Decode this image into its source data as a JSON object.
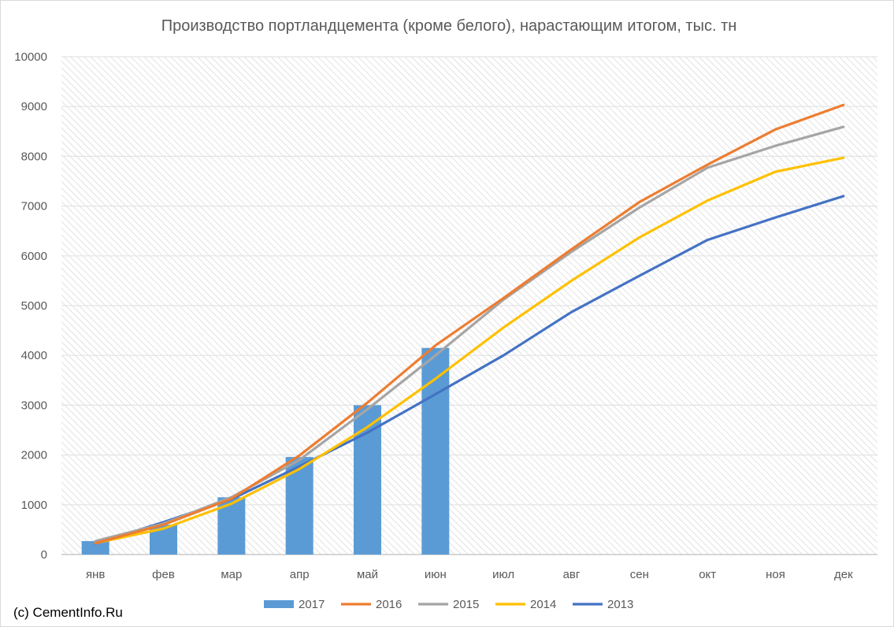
{
  "chart_data": {
    "type": "bar",
    "title": "Производство портландцемента (кроме белого), нарастающим итогом, тыс. тн",
    "xlabel": "",
    "ylabel": "",
    "categories": [
      "янв",
      "фев",
      "мар",
      "апр",
      "май",
      "июн",
      "июл",
      "авг",
      "сен",
      "окт",
      "ноя",
      "дек"
    ],
    "ylim": [
      0,
      10000
    ],
    "yticks": [
      0,
      1000,
      2000,
      3000,
      4000,
      5000,
      6000,
      7000,
      8000,
      9000,
      10000
    ],
    "grid": true,
    "legend_position": "bottom",
    "series": [
      {
        "name": "2017",
        "kind": "bar",
        "color": "#5b9bd5",
        "values": [
          270,
          600,
          1150,
          1960,
          3000,
          4150,
          null,
          null,
          null,
          null,
          null,
          null
        ]
      },
      {
        "name": "2016",
        "kind": "line",
        "color": "#ed7d31",
        "values": [
          230,
          600,
          1120,
          1990,
          3050,
          4200,
          5150,
          6130,
          7080,
          7830,
          8540,
          9030
        ]
      },
      {
        "name": "2015",
        "kind": "line",
        "color": "#a5a5a5",
        "values": [
          270,
          620,
          1150,
          1900,
          2920,
          4000,
          5120,
          6080,
          6970,
          7770,
          8210,
          8590
        ]
      },
      {
        "name": "2014",
        "kind": "line",
        "color": "#ffc000",
        "values": [
          230,
          520,
          1020,
          1720,
          2560,
          3530,
          4560,
          5500,
          6370,
          7110,
          7690,
          7970
        ]
      },
      {
        "name": "2013",
        "kind": "line",
        "color": "#4472c4",
        "values": [
          220,
          650,
          1110,
          1770,
          2450,
          3220,
          4000,
          4870,
          5600,
          6320,
          6770,
          7200
        ]
      }
    ]
  },
  "watermark": "(c) CementInfo.Ru"
}
